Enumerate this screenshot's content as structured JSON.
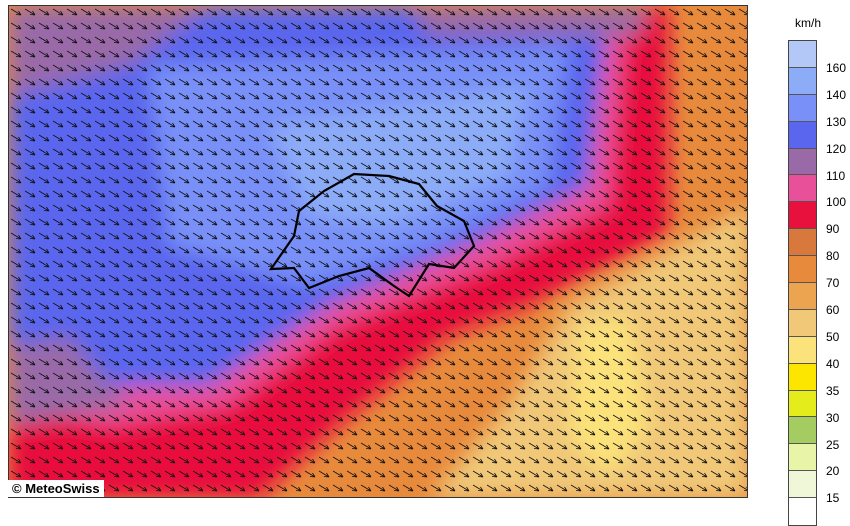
{
  "map": {
    "description_layer": "wind-gusts",
    "colors": {
      "very_light_blue": "#b4c8f8",
      "light_blue": "#8cacf8",
      "blue": "#7890f8",
      "dark_blue": "#5a66ee",
      "purple": "#9a6aa8",
      "pink": "#e8509a",
      "red": "#e8103c",
      "dark_orange": "#d8783c",
      "orange": "#e88a3c",
      "light_orange": "#eca450",
      "tan": "#f0c878",
      "pale_yellow": "#fce27a"
    }
  },
  "legend": {
    "unit": "km/h",
    "colors": [
      "#b4c8f8",
      "#8cacf8",
      "#7890f8",
      "#5a66ee",
      "#9a6aa8",
      "#e8509a",
      "#e8103c",
      "#d8783c",
      "#e88a3c",
      "#eca450",
      "#f0c878",
      "#fce27a",
      "#fce600",
      "#e4ec1c",
      "#a4cc60",
      "#e8f4a8",
      "#f0f6d8",
      "#ffffff"
    ],
    "labels": [
      "160",
      "140",
      "130",
      "120",
      "110",
      "100",
      "90",
      "80",
      "70",
      "60",
      "50",
      "40",
      "35",
      "30",
      "25",
      "20",
      "15"
    ]
  },
  "copyright": "© MeteoSwiss"
}
